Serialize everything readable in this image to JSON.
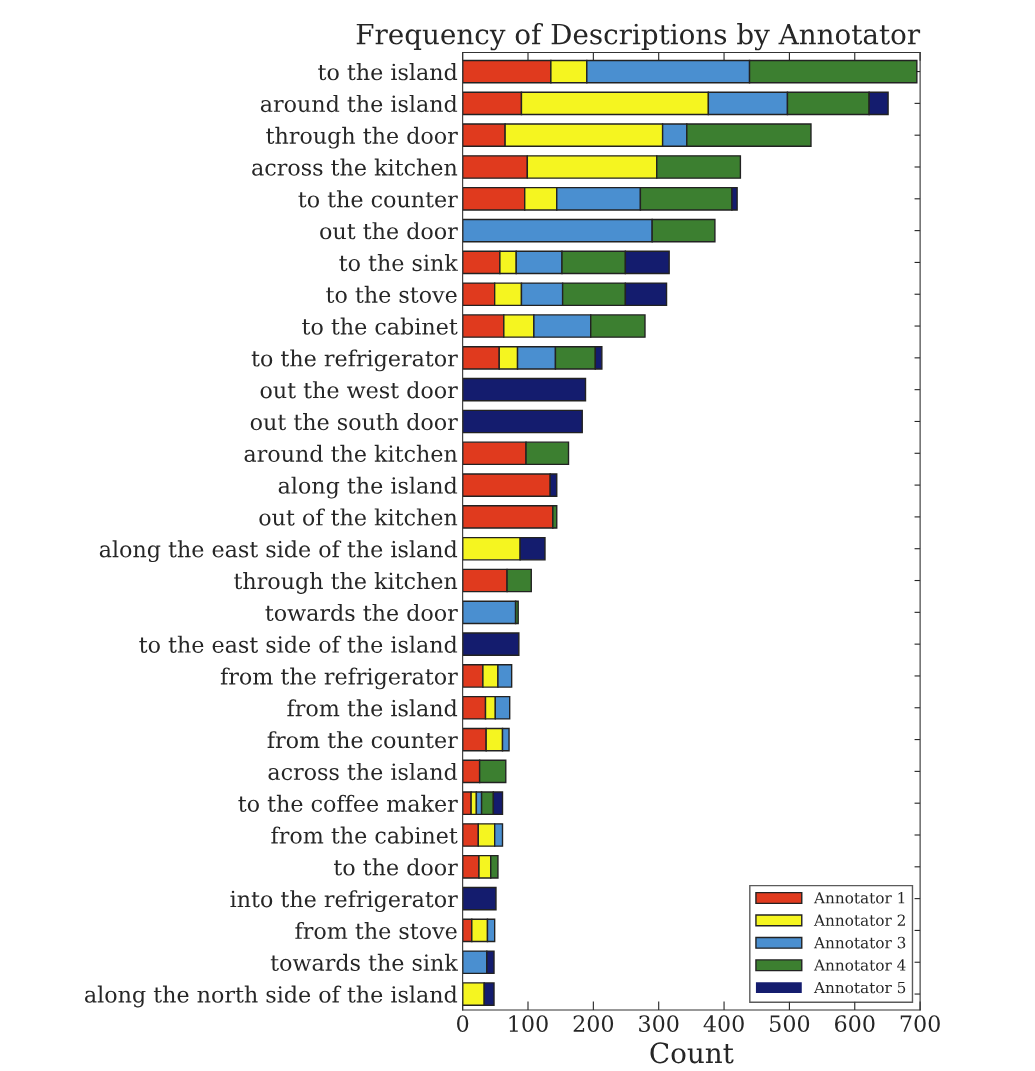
{
  "chart_data": {
    "type": "bar",
    "orientation": "horizontal",
    "stacked": true,
    "title": "Frequency of Descriptions by Annotator",
    "xlabel": "Count",
    "categories": [
      "to the island",
      "around the island",
      "through the door",
      "across the kitchen",
      "to the counter",
      "out the door",
      "to the sink",
      "to the stove",
      "to the cabinet",
      "to the refrigerator",
      "out the west door",
      "out the south door",
      "around the kitchen",
      "along the island",
      "out of the kitchen",
      "along the east side of the island",
      "through the kitchen",
      "towards the door",
      "to the east side of the island",
      "from the refrigerator",
      "from the island",
      "from the counter",
      "across the island",
      "to the coffee maker",
      "from the cabinet",
      "to the door",
      "into the refrigerator",
      "from the stove",
      "towards the sink",
      "along the north side of the island"
    ],
    "series": [
      {
        "name": "Annotator 1",
        "color": "#e03a1e",
        "values": [
          135,
          90,
          65,
          99,
          95,
          0,
          57,
          49,
          63,
          56,
          0,
          0,
          97,
          134,
          138,
          0,
          68,
          0,
          0,
          31,
          35,
          36,
          26,
          13,
          24,
          25,
          0,
          14,
          0,
          0
        ]
      },
      {
        "name": "Annotator 2",
        "color": "#f5f520",
        "values": [
          55,
          286,
          241,
          198,
          49,
          0,
          25,
          41,
          46,
          28,
          0,
          0,
          0,
          0,
          0,
          88,
          0,
          0,
          0,
          23,
          15,
          25,
          0,
          8,
          25,
          18,
          0,
          24,
          0,
          33
        ]
      },
      {
        "name": "Annotator 3",
        "color": "#4a8fd0",
        "values": [
          249,
          121,
          37,
          0,
          128,
          290,
          70,
          63,
          87,
          58,
          0,
          0,
          0,
          0,
          0,
          0,
          0,
          81,
          0,
          21,
          22,
          10,
          0,
          8,
          12,
          0,
          0,
          11,
          37,
          0
        ]
      },
      {
        "name": "Annotator 4",
        "color": "#3c7f30",
        "values": [
          256,
          125,
          190,
          128,
          140,
          96,
          97,
          96,
          83,
          61,
          0,
          0,
          65,
          0,
          6,
          0,
          37,
          4,
          0,
          0,
          0,
          0,
          40,
          18,
          0,
          11,
          0,
          0,
          0,
          0
        ]
      },
      {
        "name": "Annotator 5",
        "color": "#141c6e",
        "values": [
          0,
          29,
          0,
          0,
          8,
          0,
          67,
          63,
          0,
          10,
          188,
          183,
          0,
          10,
          0,
          38,
          0,
          0,
          86,
          0,
          0,
          0,
          0,
          14,
          0,
          0,
          51,
          0,
          11,
          15
        ]
      }
    ],
    "xlim": [
      0,
      700
    ],
    "xticks": [
      0,
      100,
      200,
      300,
      400,
      500,
      600,
      700
    ],
    "grid": false,
    "legend": "bottom right"
  }
}
